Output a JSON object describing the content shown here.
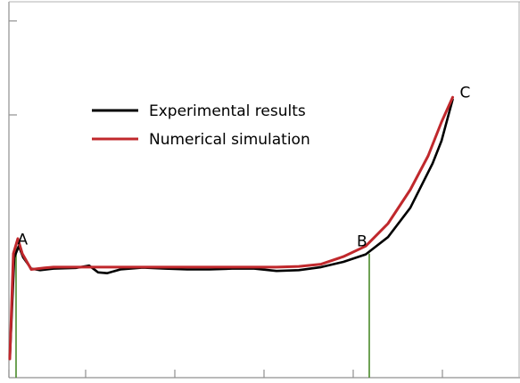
{
  "chart_data": {
    "type": "line",
    "title": "",
    "xlabel": "",
    "ylabel": "",
    "xlim": [
      0,
      100
    ],
    "ylim": [
      0,
      100
    ],
    "x_ticks": [
      0,
      20,
      40,
      60,
      80,
      100
    ],
    "y_ticks": [
      50,
      75
    ],
    "grid": false,
    "legend_position": "top-left",
    "series": [
      {
        "name": "Experimental results",
        "color": "#000000",
        "points": [
          [
            0.2,
            5
          ],
          [
            1.2,
            32
          ],
          [
            2.2,
            35
          ],
          [
            3.2,
            32
          ],
          [
            5,
            29
          ],
          [
            7,
            28.6
          ],
          [
            10,
            29
          ],
          [
            15,
            29.2
          ],
          [
            18,
            29.8
          ],
          [
            20,
            28
          ],
          [
            22,
            27.8
          ],
          [
            25,
            28.8
          ],
          [
            30,
            29.3
          ],
          [
            35,
            29
          ],
          [
            40,
            28.8
          ],
          [
            45,
            28.8
          ],
          [
            50,
            29
          ],
          [
            55,
            29
          ],
          [
            60,
            28.4
          ],
          [
            65,
            28.6
          ],
          [
            70,
            29.4
          ],
          [
            75,
            30.8
          ],
          [
            80,
            32.8
          ],
          [
            85,
            37.4
          ],
          [
            90,
            45.2
          ],
          [
            95,
            57
          ],
          [
            97,
            63
          ],
          [
            99.5,
            74
          ]
        ]
      },
      {
        "name": "Numerical simulation",
        "color": "#c0282c",
        "points": [
          [
            0.2,
            5
          ],
          [
            1,
            33
          ],
          [
            2,
            37
          ],
          [
            3,
            33
          ],
          [
            5,
            28.8
          ],
          [
            8,
            29.2
          ],
          [
            10,
            29.4
          ],
          [
            15,
            29.4
          ],
          [
            20,
            29.4
          ],
          [
            25,
            29.4
          ],
          [
            30,
            29.4
          ],
          [
            35,
            29.4
          ],
          [
            40,
            29.4
          ],
          [
            45,
            29.4
          ],
          [
            50,
            29.4
          ],
          [
            55,
            29.4
          ],
          [
            60,
            29.4
          ],
          [
            65,
            29.6
          ],
          [
            70,
            30.2
          ],
          [
            75,
            32.2
          ],
          [
            80,
            35
          ],
          [
            85,
            41
          ],
          [
            90,
            50
          ],
          [
            94,
            59
          ],
          [
            97,
            68
          ],
          [
            99.5,
            74.6
          ]
        ]
      }
    ],
    "annotations": [
      {
        "label": "A",
        "x": 1.5,
        "y": 34
      },
      {
        "label": "B",
        "x": 80,
        "y": 33
      },
      {
        "label": "C",
        "x": 99.5,
        "y": 74.5
      }
    ],
    "reference_lines": [
      {
        "x": 0.8,
        "y_from": 0,
        "y_to": 35,
        "color": "#4a8a2a"
      },
      {
        "x": 80,
        "y_from": 0,
        "y_to": 33,
        "color": "#4a8a2a"
      }
    ]
  }
}
